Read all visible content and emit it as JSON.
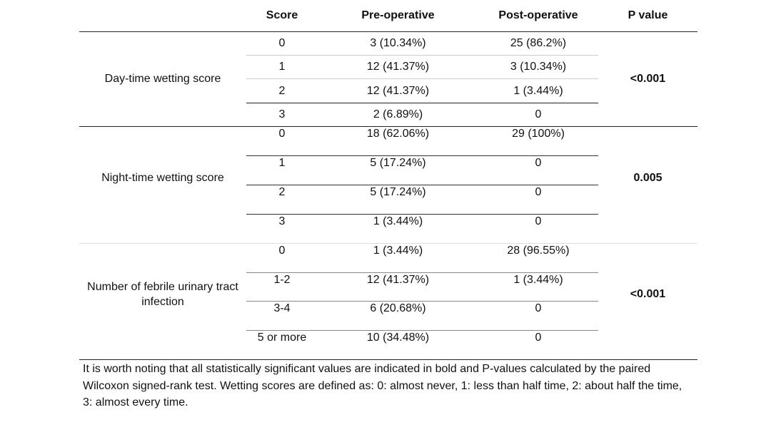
{
  "headers": [
    "",
    "Score",
    "Pre-operative",
    "Post-operative",
    "P value"
  ],
  "groups": [
    {
      "label": "Day-time wetting score",
      "p_value": "<0.001",
      "p_bold": true,
      "rows": [
        [
          "0",
          "3 (10.34%)",
          "25 (86.2%)"
        ],
        [
          "1",
          "12 (41.37%)",
          "3 (10.34%)"
        ],
        [
          "2",
          "12 (41.37%)",
          "1 (3.44%)"
        ],
        [
          "3",
          "2 (6.89%)",
          "0"
        ]
      ]
    },
    {
      "label": "Night-time wetting score",
      "p_value": "0.005",
      "p_bold": true,
      "rows": [
        [
          "0",
          "18 (62.06%)",
          "29 (100%)"
        ],
        [
          "1",
          "5 (17.24%)",
          "0"
        ],
        [
          "2",
          "5 (17.24%)",
          "0"
        ],
        [
          "3",
          "1 (3.44%)",
          "0"
        ]
      ]
    },
    {
      "label": "Number of febrile urinary tract infection",
      "p_value": "<0.001",
      "p_bold": true,
      "rows": [
        [
          "0",
          "1 (3.44%)",
          "28 (96.55%)"
        ],
        [
          "1-2",
          "12 (41.37%)",
          "1 (3.44%)"
        ],
        [
          "3-4",
          "6 (20.68%)",
          "0"
        ],
        [
          "5 or more",
          "10 (34.48%)",
          "0"
        ]
      ]
    }
  ],
  "footnote": "It is worth noting that all statistically significant values are indicated in bold and P-values calculated by the paired Wilcoxon signed-rank test. Wetting scores are defined as: 0: almost never, 1: less than half time, 2: about half the time, 3: almost every time."
}
